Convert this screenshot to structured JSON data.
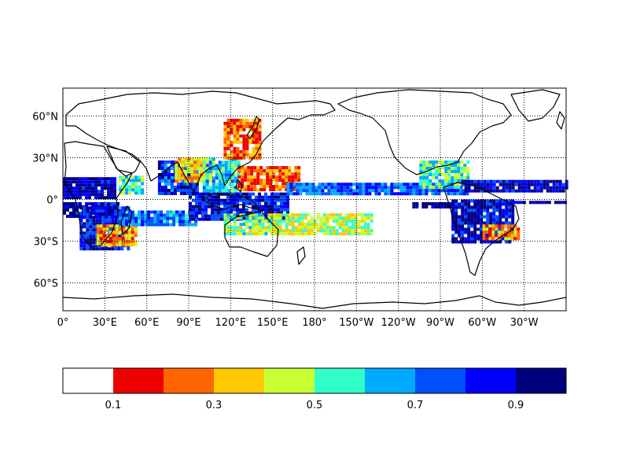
{
  "map": {
    "projection": "cylindrical",
    "lon_range": [
      0,
      360
    ],
    "lat_range": [
      -80,
      80
    ],
    "graticule_style": "dotted",
    "lat_ticks": [
      {
        "lat": 60,
        "label": "60°N"
      },
      {
        "lat": 30,
        "label": "30°N"
      },
      {
        "lat": 0,
        "label": "0°"
      },
      {
        "lat": -30,
        "label": "30°S"
      },
      {
        "lat": -60,
        "label": "60°S"
      }
    ],
    "lon_ticks": [
      {
        "lon": 0,
        "label": "0°"
      },
      {
        "lon": 30,
        "label": "30°E"
      },
      {
        "lon": 60,
        "label": "60°E"
      },
      {
        "lon": 90,
        "label": "90°E"
      },
      {
        "lon": 120,
        "label": "120°E"
      },
      {
        "lon": 150,
        "label": "150°E"
      },
      {
        "lon": 180,
        "label": "180°"
      },
      {
        "lon": 210,
        "label": "150°W"
      },
      {
        "lon": 240,
        "label": "120°W"
      },
      {
        "lon": 270,
        "label": "90°W"
      },
      {
        "lon": 300,
        "label": "60°W"
      },
      {
        "lon": 330,
        "label": "30°W"
      }
    ],
    "field_regions": [
      {
        "name": "atlantic-africa-belt-n",
        "lon": [
          0,
          38
        ],
        "lat": [
          2,
          16
        ],
        "value": 0.93
      },
      {
        "name": "east-africa-arabia",
        "lon": [
          40,
          58
        ],
        "lat": [
          5,
          17
        ],
        "value": 0.55
      },
      {
        "name": "indian-ocean-north",
        "lon": [
          68,
          96
        ],
        "lat": [
          5,
          28
        ],
        "value": 0.82
      },
      {
        "name": "himalaya-hotspot",
        "lon": [
          80,
          106
        ],
        "lat": [
          14,
          30
        ],
        "value": 0.35
      },
      {
        "name": "south-china-sea",
        "lon": [
          100,
          125
        ],
        "lat": [
          5,
          30
        ],
        "value": 0.6
      },
      {
        "name": "east-asia-north",
        "lon": [
          115,
          140
        ],
        "lat": [
          30,
          58
        ],
        "value": 0.25
      },
      {
        "name": "west-pacific-north",
        "lon": [
          125,
          168
        ],
        "lat": [
          8,
          24
        ],
        "value": 0.22
      },
      {
        "name": "itcz-pacific",
        "lon": [
          160,
          290
        ],
        "lat": [
          5,
          12
        ],
        "value": 0.75
      },
      {
        "name": "central-america",
        "lon": [
          255,
          290
        ],
        "lat": [
          8,
          28
        ],
        "value": 0.55
      },
      {
        "name": "caribbean-belt",
        "lon": [
          285,
          360
        ],
        "lat": [
          5,
          14
        ],
        "value": 0.88
      },
      {
        "name": "atlantic-africa-belt-s",
        "lon": [
          0,
          40
        ],
        "lat": [
          -12,
          -2
        ],
        "value": 0.9
      },
      {
        "name": "southern-africa",
        "lon": [
          12,
          48
        ],
        "lat": [
          -35,
          -5
        ],
        "value": 0.85
      },
      {
        "name": "madagascar-hotspot",
        "lon": [
          24,
          52
        ],
        "lat": [
          -32,
          -18
        ],
        "value": 0.3
      },
      {
        "name": "indian-ocean-south",
        "lon": [
          40,
          95
        ],
        "lat": [
          -18,
          -8
        ],
        "value": 0.72
      },
      {
        "name": "maritime-continent",
        "lon": [
          90,
          160
        ],
        "lat": [
          -15,
          5
        ],
        "value": 0.85
      },
      {
        "name": "australia-north",
        "lon": [
          115,
          155
        ],
        "lat": [
          -25,
          -10
        ],
        "value": 0.5
      },
      {
        "name": "south-pacific-cz",
        "lon": [
          150,
          220
        ],
        "lat": [
          -24,
          -10
        ],
        "value": 0.45
      },
      {
        "name": "east-pacific-south",
        "lon": [
          250,
          280
        ],
        "lat": [
          -5,
          -2
        ],
        "value": 0.95
      },
      {
        "name": "south-america",
        "lon": [
          278,
          322
        ],
        "lat": [
          -30,
          0
        ],
        "value": 0.9
      },
      {
        "name": "brazil-south-hotspot",
        "lon": [
          300,
          325
        ],
        "lat": [
          -28,
          -18
        ],
        "value": 0.3
      },
      {
        "name": "south-atlantic-east",
        "lon": [
          320,
          360
        ],
        "lat": [
          -3,
          -1
        ],
        "value": 0.95
      }
    ],
    "colors": {
      "coastline": "#000000",
      "frame": "#000000"
    }
  },
  "colorbar": {
    "bins": [
      {
        "from": 0.0,
        "to": 0.1,
        "color": "#ffffff"
      },
      {
        "from": 0.1,
        "to": 0.2,
        "color": "#ee0000"
      },
      {
        "from": 0.2,
        "to": 0.3,
        "color": "#ff6600"
      },
      {
        "from": 0.3,
        "to": 0.4,
        "color": "#ffc800"
      },
      {
        "from": 0.4,
        "to": 0.5,
        "color": "#c8ff32"
      },
      {
        "from": 0.5,
        "to": 0.6,
        "color": "#32ffc8"
      },
      {
        "from": 0.6,
        "to": 0.7,
        "color": "#00aaff"
      },
      {
        "from": 0.7,
        "to": 0.8,
        "color": "#0050ff"
      },
      {
        "from": 0.8,
        "to": 0.9,
        "color": "#0000ff"
      },
      {
        "from": 0.9,
        "to": 1.0,
        "color": "#00007f"
      }
    ],
    "tick_labels": [
      {
        "value": 0.1,
        "label": "0.1"
      },
      {
        "value": 0.3,
        "label": "0.3"
      },
      {
        "value": 0.5,
        "label": "0.5"
      },
      {
        "value": 0.7,
        "label": "0.7"
      },
      {
        "value": 0.9,
        "label": "0.9"
      }
    ]
  }
}
